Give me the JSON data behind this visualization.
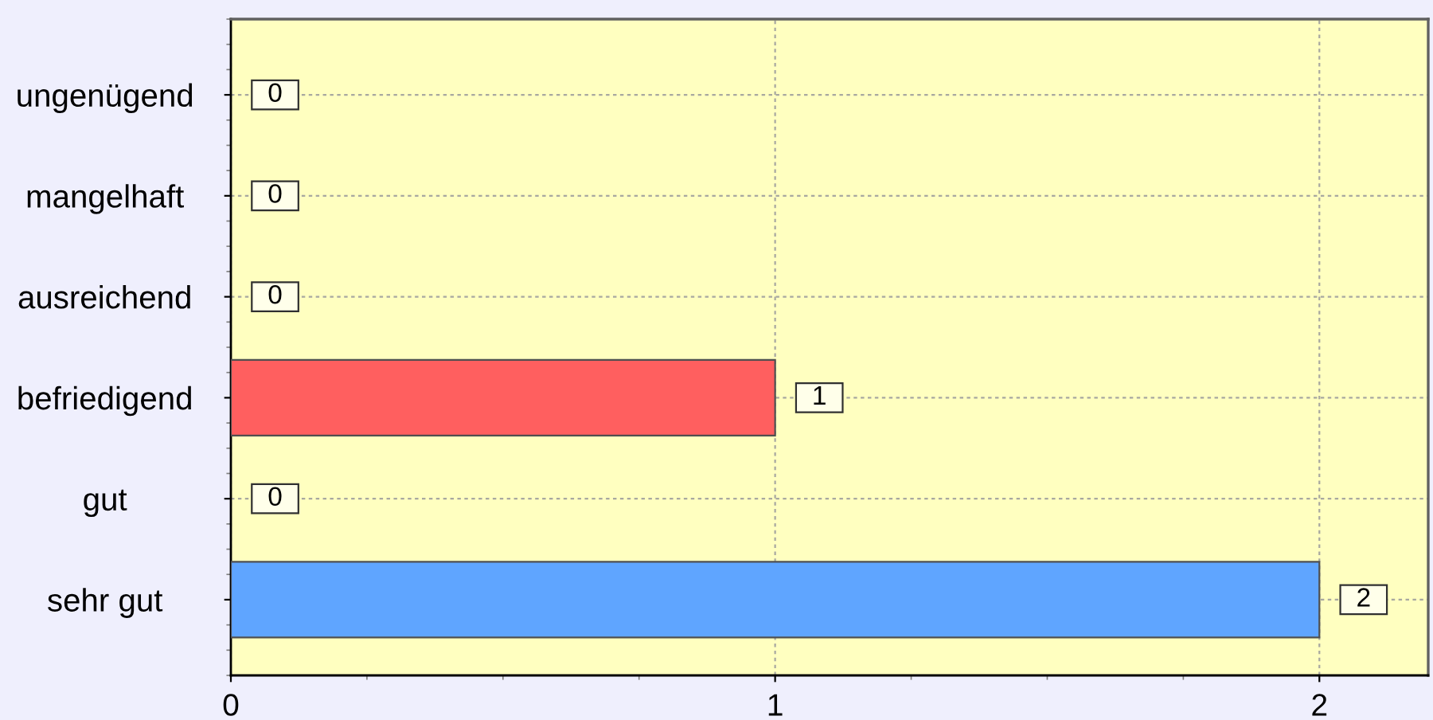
{
  "chart_data": {
    "type": "bar",
    "orientation": "horizontal",
    "categories": [
      "ungenügend",
      "mangelhaft",
      "ausreichend",
      "befriedigend",
      "gut",
      "sehr gut"
    ],
    "values": [
      0,
      0,
      0,
      1,
      0,
      2
    ],
    "colors": [
      null,
      null,
      null,
      "#ff5f5f",
      null,
      "#5fa5ff"
    ],
    "xlim": [
      0,
      2.2
    ],
    "xticks": [
      0,
      1,
      2
    ],
    "grid": true,
    "data_labels": true
  }
}
